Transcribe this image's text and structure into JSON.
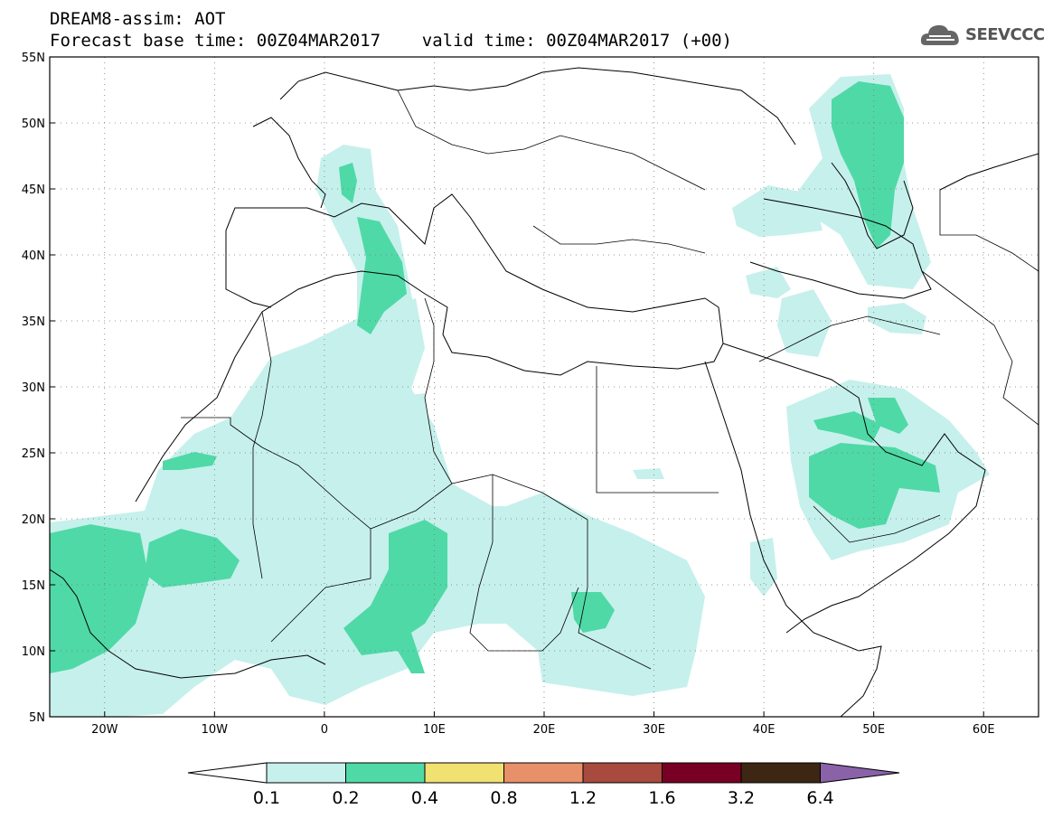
{
  "title": {
    "line1": "DREAM8-assim: AOT",
    "line2": "Forecast base time: 00Z04MAR2017    valid time: 00Z04MAR2017 (+00)"
  },
  "logo": {
    "text": "SEEVCCC",
    "icon": "cloud-icon"
  },
  "map": {
    "lat_labels": [
      "55N",
      "50N",
      "45N",
      "40N",
      "35N",
      "30N",
      "25N",
      "20N",
      "15N",
      "10N",
      "5N"
    ],
    "lon_labels": [
      "20W",
      "10W",
      "0",
      "10E",
      "20E",
      "30E",
      "40E",
      "50E",
      "60E"
    ],
    "extent": {
      "lon": [
        -25,
        65
      ],
      "lat": [
        5,
        55
      ]
    },
    "grid": "dotted"
  },
  "legend": {
    "labels": [
      "0.1",
      "0.2",
      "0.4",
      "0.8",
      "1.2",
      "1.6",
      "3.2",
      "6.4"
    ],
    "colors": [
      "#ffffff",
      "#c6f0ec",
      "#4fd9a6",
      "#f0e170",
      "#e8906a",
      "#a84a3e",
      "#780024",
      "#3d2614",
      "#8a62a8"
    ]
  }
}
